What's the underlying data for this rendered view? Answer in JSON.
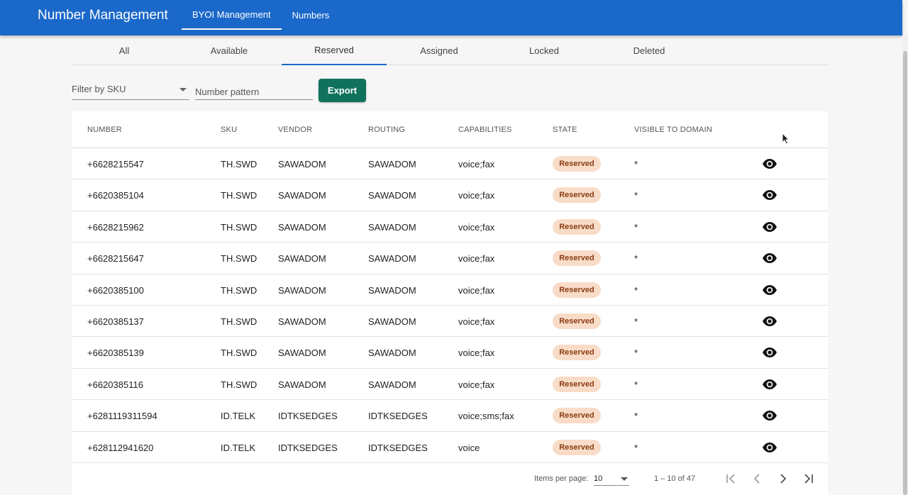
{
  "app": {
    "title": "Number Management"
  },
  "top_nav": [
    {
      "label": "BYOI Management",
      "active": true
    },
    {
      "label": "Numbers",
      "active": false
    }
  ],
  "tabs": [
    {
      "label": "All",
      "active": false
    },
    {
      "label": "Available",
      "active": false
    },
    {
      "label": "Reserved",
      "active": true
    },
    {
      "label": "Assigned",
      "active": false
    },
    {
      "label": "Locked",
      "active": false
    },
    {
      "label": "Deleted",
      "active": false
    }
  ],
  "filters": {
    "sku_label": "Filter by SKU",
    "pattern_placeholder": "Number pattern",
    "export_label": "Export"
  },
  "table": {
    "headers": [
      "NUMBER",
      "SKU",
      "VENDOR",
      "ROUTING",
      "CAPABILITIES",
      "STATE",
      "VISIBLE TO DOMAIN"
    ],
    "rows": [
      {
        "number": "+6628215547",
        "sku": "TH.SWD",
        "vendor": "SAWADOM",
        "routing": "SAWADOM",
        "capabilities": "voice;fax",
        "state": "Reserved",
        "visible": "*"
      },
      {
        "number": "+6620385104",
        "sku": "TH.SWD",
        "vendor": "SAWADOM",
        "routing": "SAWADOM",
        "capabilities": "voice;fax",
        "state": "Reserved",
        "visible": "*"
      },
      {
        "number": "+6628215962",
        "sku": "TH.SWD",
        "vendor": "SAWADOM",
        "routing": "SAWADOM",
        "capabilities": "voice;fax",
        "state": "Reserved",
        "visible": "*"
      },
      {
        "number": "+6628215647",
        "sku": "TH.SWD",
        "vendor": "SAWADOM",
        "routing": "SAWADOM",
        "capabilities": "voice;fax",
        "state": "Reserved",
        "visible": "*"
      },
      {
        "number": "+6620385100",
        "sku": "TH.SWD",
        "vendor": "SAWADOM",
        "routing": "SAWADOM",
        "capabilities": "voice;fax",
        "state": "Reserved",
        "visible": "*"
      },
      {
        "number": "+6620385137",
        "sku": "TH.SWD",
        "vendor": "SAWADOM",
        "routing": "SAWADOM",
        "capabilities": "voice;fax",
        "state": "Reserved",
        "visible": "*"
      },
      {
        "number": "+6620385139",
        "sku": "TH.SWD",
        "vendor": "SAWADOM",
        "routing": "SAWADOM",
        "capabilities": "voice;fax",
        "state": "Reserved",
        "visible": "*"
      },
      {
        "number": "+6620385116",
        "sku": "TH.SWD",
        "vendor": "SAWADOM",
        "routing": "SAWADOM",
        "capabilities": "voice;fax",
        "state": "Reserved",
        "visible": "*"
      },
      {
        "number": "+6281119311594",
        "sku": "ID.TELK",
        "vendor": "IDTKSEDGES",
        "routing": "IDTKSEDGES",
        "capabilities": "voice;sms;fax",
        "state": "Reserved",
        "visible": "*"
      },
      {
        "number": "+628112941620",
        "sku": "ID.TELK",
        "vendor": "IDTKSEDGES",
        "routing": "IDTKSEDGES",
        "capabilities": "voice",
        "state": "Reserved",
        "visible": "*"
      }
    ]
  },
  "paginator": {
    "items_per_page_label": "Items per page:",
    "items_per_page": "10",
    "range": "1 – 10 of 47"
  },
  "icons": {
    "row_action": "eye-icon",
    "first": "first-page-icon",
    "prev": "chevron-left-icon",
    "next": "chevron-right-icon",
    "last": "last-page-icon"
  },
  "colors": {
    "header_bg": "#1a68c9",
    "export_bg": "#10725c",
    "badge_bg": "#f8dcc8",
    "badge_text": "#8a3b12"
  }
}
